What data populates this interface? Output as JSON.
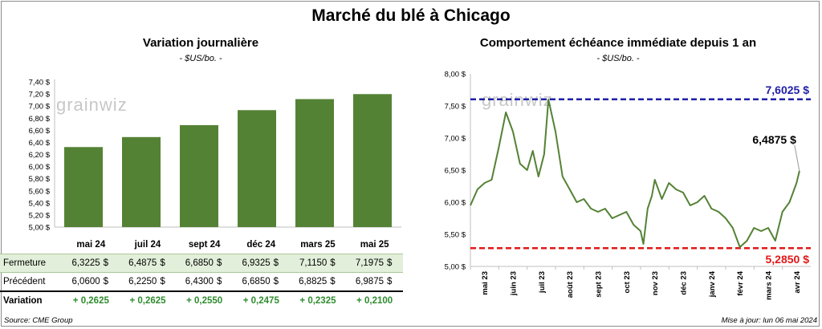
{
  "title": "Marché du blé à Chicago",
  "watermark": "grainwiz",
  "left": {
    "subtitle": "Variation journalière",
    "unit": "- $US/bo. -",
    "chart_data": {
      "type": "bar",
      "categories": [
        "mai 24",
        "juil 24",
        "sept 24",
        "déc 24",
        "mars 25",
        "mai 25"
      ],
      "values": [
        6.3225,
        6.4875,
        6.685,
        6.9325,
        7.115,
        7.1975
      ],
      "ylim": [
        5.0,
        7.4
      ],
      "yticks": [
        "5,00 $",
        "5,20 $",
        "5,40 $",
        "5,60 $",
        "5,80 $",
        "6,00 $",
        "6,20 $",
        "6,40 $",
        "6,60 $",
        "6,80 $",
        "7,00 $",
        "7,20 $",
        "7,40 $"
      ],
      "color": "#548235"
    }
  },
  "table": {
    "months": [
      "mai 24",
      "juil 24",
      "sept 24",
      "déc 24",
      "mars 25",
      "mai 25"
    ],
    "rows": [
      {
        "label": "Fermeture",
        "values": [
          "6,3225",
          "6,4875",
          "6,6850",
          "6,9325",
          "7,1150",
          "7,1975"
        ],
        "currency": "$"
      },
      {
        "label": "Précédent",
        "values": [
          "6,0600",
          "6,2250",
          "6,4300",
          "6,6850",
          "6,8825",
          "6,9875"
        ],
        "currency": "$"
      },
      {
        "label": "Variation",
        "values": [
          "+ 0,2625",
          "+ 0,2625",
          "+ 0,2550",
          "+ 0,2475",
          "+ 0,2325",
          "+ 0,2100"
        ]
      }
    ]
  },
  "right": {
    "subtitle": "Comportement  échéance immédiate depuis 1 an",
    "unit": "- $US/bo. -",
    "chart_data": {
      "type": "line",
      "ylim": [
        5.0,
        8.0
      ],
      "yticks": [
        "5,00 $",
        "5,50 $",
        "6,00 $",
        "6,50 $",
        "7,00 $",
        "7,50 $",
        "8,00 $"
      ],
      "xticks": [
        "mai 23",
        "juin 23",
        "juil 23",
        "août 23",
        "sept 23",
        "oct 23",
        "nov 23",
        "déc 23",
        "janv 24",
        "févr 24",
        "mars 24",
        "avr 24"
      ],
      "x_months": [
        0,
        0.25,
        0.5,
        0.75,
        1,
        1.25,
        1.5,
        1.75,
        2,
        2.2,
        2.4,
        2.6,
        2.75,
        2.9,
        3,
        3.25,
        3.5,
        3.75,
        4,
        4.25,
        4.5,
        4.75,
        5,
        5.25,
        5.5,
        5.75,
        6,
        6.1,
        6.25,
        6.4,
        6.5,
        6.75,
        7,
        7.25,
        7.5,
        7.75,
        8,
        8.25,
        8.5,
        8.75,
        9,
        9.25,
        9.5,
        9.75,
        10,
        10.25,
        10.5,
        10.75,
        11,
        11.25,
        11.5,
        11.6
      ],
      "values": [
        5.95,
        6.2,
        6.3,
        6.35,
        6.85,
        7.4,
        7.1,
        6.6,
        6.5,
        6.8,
        6.4,
        6.75,
        7.6,
        7.3,
        7.1,
        6.4,
        6.2,
        6.0,
        6.05,
        5.9,
        5.85,
        5.9,
        5.75,
        5.8,
        5.85,
        5.65,
        5.55,
        5.35,
        5.9,
        6.1,
        6.35,
        6.05,
        6.3,
        6.2,
        6.15,
        5.95,
        6.0,
        6.1,
        5.9,
        5.85,
        5.75,
        5.6,
        5.3,
        5.4,
        5.6,
        5.55,
        5.6,
        5.4,
        5.85,
        6.0,
        6.3,
        6.4875
      ],
      "high": {
        "value": 7.6025,
        "label": "7,6025 $",
        "color": "#1f1fa8"
      },
      "low": {
        "value": 5.285,
        "label": "5,2850 $",
        "color": "#e01818"
      },
      "last": {
        "value": 6.4875,
        "label": "6,4875 $"
      },
      "color": "#548235"
    }
  },
  "footer": {
    "source": "Source: CME Group",
    "updated": "Mise à jour: lun 06 mai 2024"
  }
}
